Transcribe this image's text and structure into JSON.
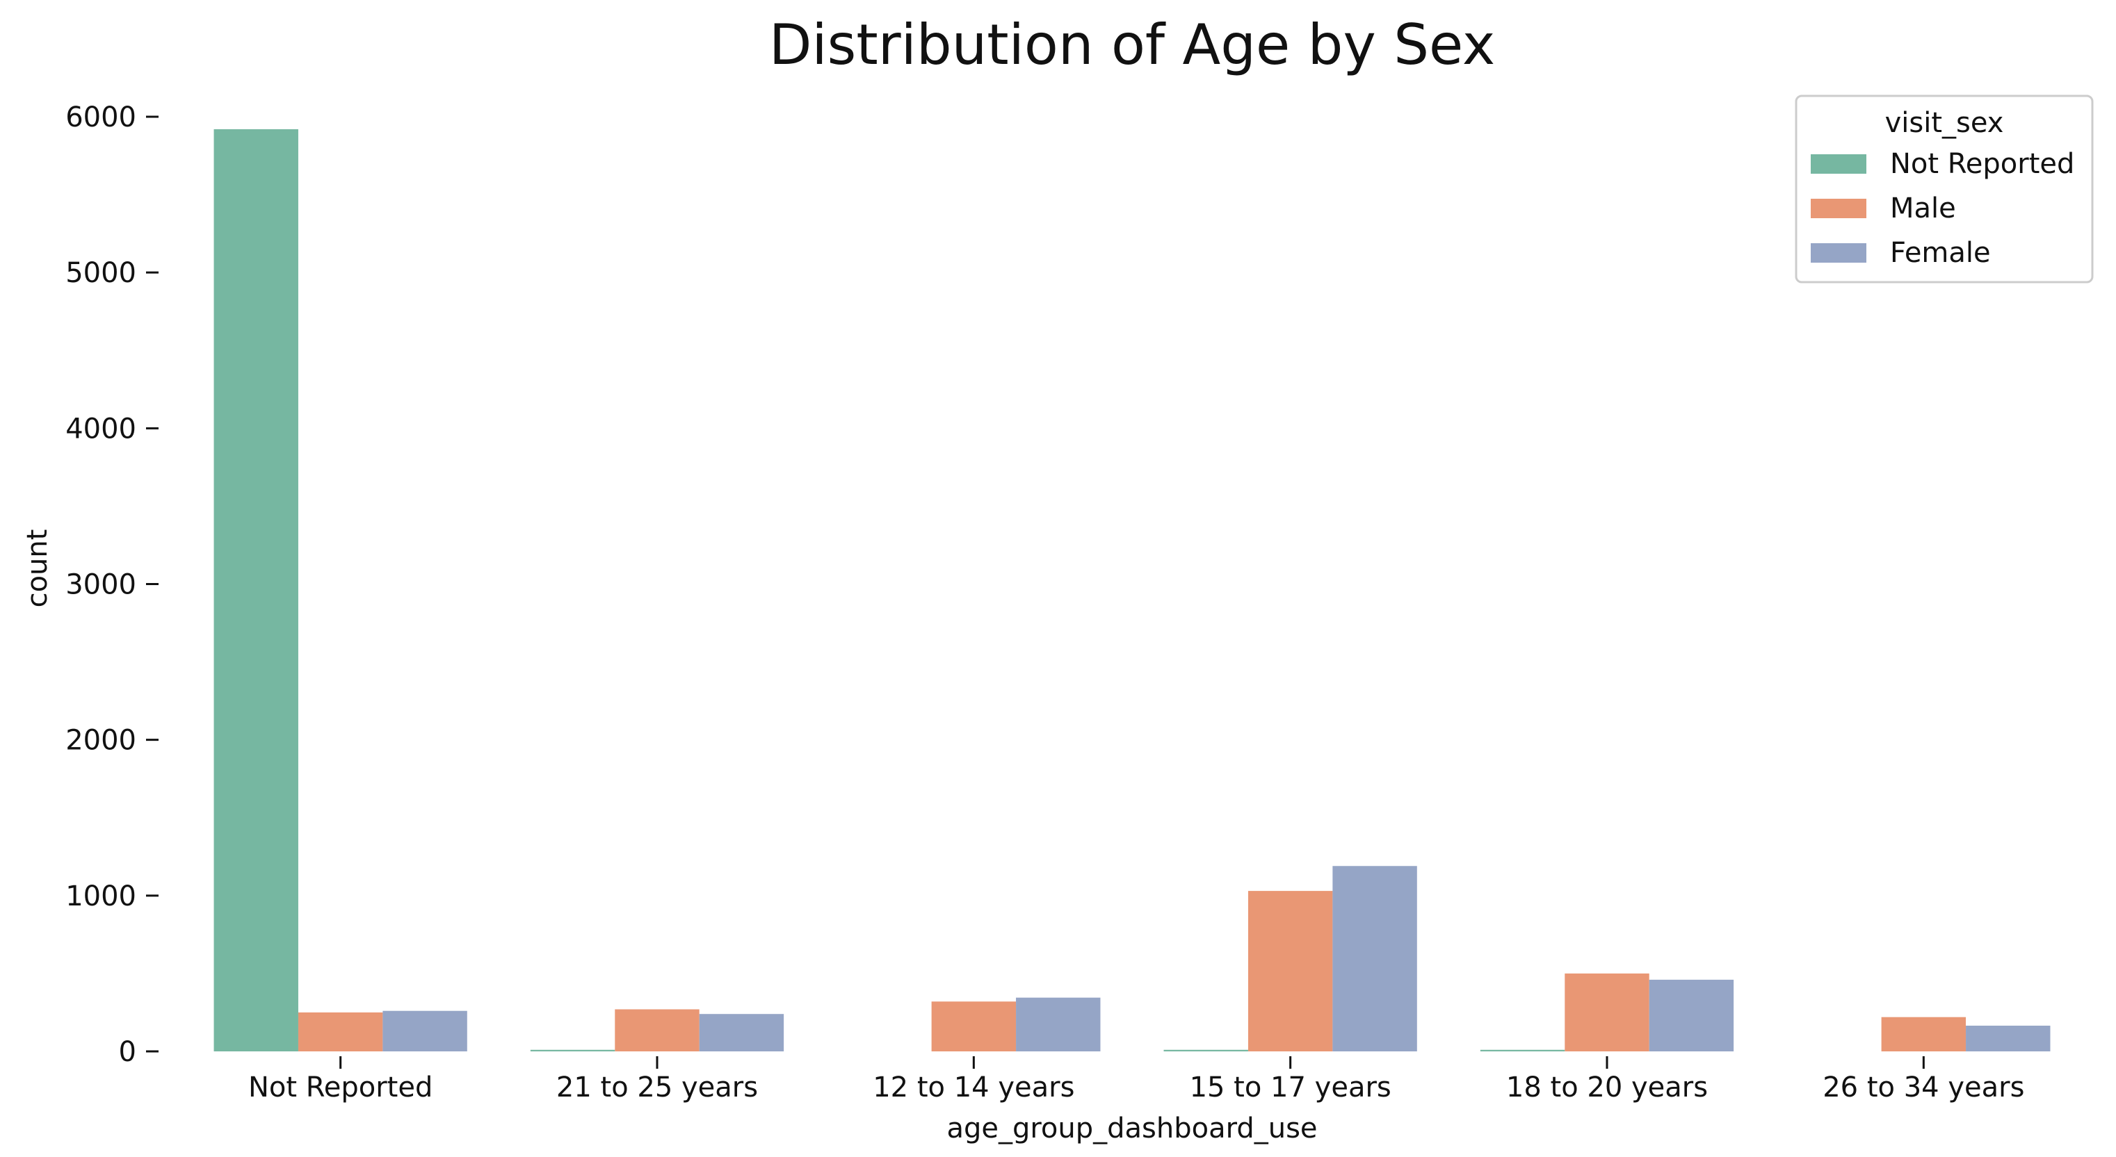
{
  "chart_data": {
    "type": "bar",
    "title": "Distribution of Age by Sex",
    "xlabel": "age_group_dashboard_use",
    "ylabel": "count",
    "ylim": [
      0,
      6200
    ],
    "yticks": [
      0,
      1000,
      2000,
      3000,
      4000,
      5000,
      6000
    ],
    "grid": false,
    "legend_title": "visit_sex",
    "legend_position": "top-right",
    "categories": [
      "Not Reported",
      "21 to 25 years",
      "12 to 14 years",
      "15 to 17 years",
      "18 to 20 years",
      "26 to 34 years"
    ],
    "series": [
      {
        "name": "Not Reported",
        "color": "#76b7a1",
        "values": [
          5920,
          10,
          0,
          10,
          10,
          0
        ]
      },
      {
        "name": "Male",
        "color": "#e99774",
        "values": [
          250,
          270,
          320,
          1030,
          500,
          220
        ]
      },
      {
        "name": "Female",
        "color": "#95a5c6",
        "values": [
          260,
          240,
          345,
          1190,
          460,
          165
        ]
      }
    ]
  }
}
